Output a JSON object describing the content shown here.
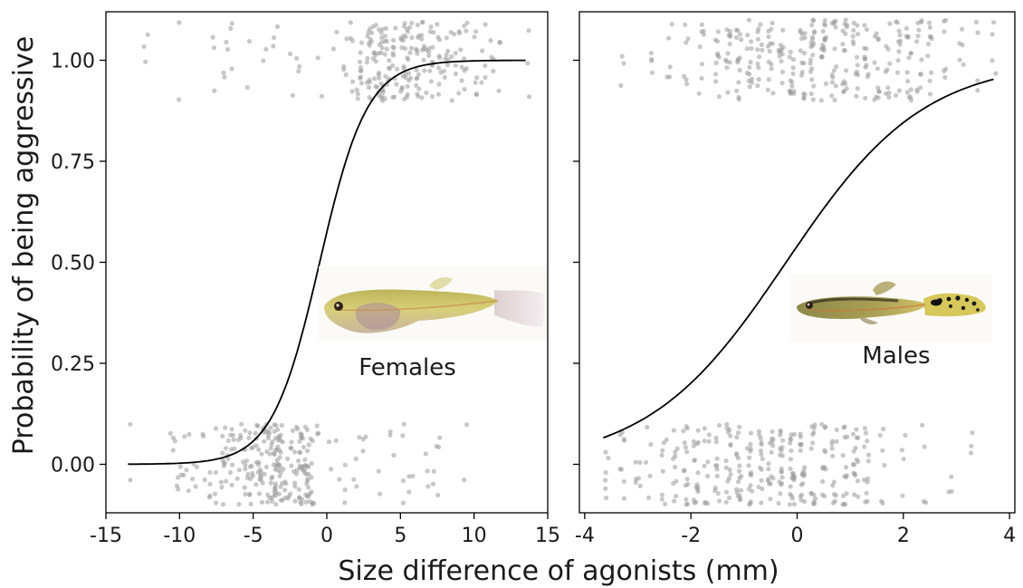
{
  "ylabel": "Probability of being aggressive",
  "xlabel": "Size difference of agonists (mm)",
  "chart_data": [
    {
      "type": "scatter",
      "panel_label": "Females",
      "fit": "logistic",
      "xlim": [
        -15,
        15
      ],
      "ylim": [
        -0.12,
        1.12
      ],
      "x_ticks": [
        -15,
        -10,
        -5,
        0,
        5,
        10,
        15
      ],
      "y_ticks": [
        0.0,
        0.25,
        0.5,
        0.75,
        1.0
      ],
      "x_tick_labels": [
        "-15",
        "-10",
        "-5",
        "0",
        "5",
        "10",
        "15"
      ],
      "y_tick_labels": [
        "0.00",
        "0.25",
        "0.50",
        "0.75",
        "1.00"
      ],
      "curve": {
        "intercept": 0.3,
        "slope": 0.62,
        "x_range": [
          -13.5,
          13.5
        ]
      },
      "points": {
        "zero_x": [
          -13.4,
          -10.5,
          -10.2,
          -9.8,
          -9.5,
          -9,
          -8.4,
          -8,
          -7.5,
          -7.1,
          -6.9,
          -6.6,
          -6.3,
          -5.9,
          -5.6,
          -5.3,
          -5.1,
          -4.7,
          -4.5,
          -4.2,
          -3.9,
          -3.6,
          -3.4,
          -3.3,
          -3.1,
          -2.7,
          -2.3,
          -2,
          -1.8,
          -1.6,
          -1.4,
          -1.2,
          -1,
          -0.6,
          0.3,
          0.7,
          1.2,
          1.9,
          2.1,
          2.6,
          3.5,
          4.4,
          5.1,
          5.7,
          6.8,
          7.3,
          7.6,
          9.5
        ],
        "zero_counts": [
          2,
          3,
          4,
          4,
          3,
          4,
          3,
          4,
          4,
          5,
          8,
          6,
          5,
          7,
          8,
          6,
          9,
          10,
          12,
          9,
          12,
          14,
          16,
          12,
          9,
          7,
          8,
          10,
          9,
          14,
          12,
          8,
          6,
          3,
          2,
          2,
          3,
          2,
          2,
          3,
          2,
          3,
          4,
          3,
          3,
          3,
          3,
          2
        ],
        "one_x": [
          -12.3,
          -10.2,
          -7.8,
          -6.9,
          -6.5,
          -5.4,
          -4.3,
          -3.5,
          -2.4,
          -1.9,
          -0.5,
          0.6,
          1.2,
          1.6,
          2.2,
          2.9,
          3.3,
          3.7,
          4.1,
          4.6,
          5.2,
          5.6,
          6.1,
          6.6,
          7.1,
          7.6,
          8.1,
          8.6,
          9.1,
          9.5,
          10.1,
          10.6,
          11.2,
          11.8,
          13.6
        ],
        "one_counts": [
          3,
          2,
          3,
          4,
          3,
          2,
          2,
          3,
          2,
          3,
          2,
          2,
          4,
          5,
          12,
          16,
          10,
          22,
          14,
          12,
          18,
          15,
          14,
          12,
          14,
          9,
          8,
          7,
          6,
          7,
          6,
          5,
          4,
          3,
          3
        ]
      }
    },
    {
      "type": "scatter",
      "panel_label": "Males",
      "fit": "logistic",
      "xlim": [
        -4.1,
        4.1
      ],
      "ylim": [
        -0.12,
        1.12
      ],
      "x_ticks": [
        -4,
        -2,
        0,
        2,
        4
      ],
      "y_ticks": [
        0.0,
        0.25,
        0.5,
        0.75,
        1.0
      ],
      "x_tick_labels": [
        "-4",
        "-2",
        "0",
        "2",
        "4"
      ],
      "y_tick_labels": [
        "0.00",
        "0.25",
        "0.50",
        "0.75",
        "1.00"
      ],
      "curve": {
        "intercept": 0.16,
        "slope": 0.77,
        "x_range": [
          -3.65,
          3.7
        ]
      },
      "points": {
        "zero_x": [
          -3.6,
          -3.3,
          -3.0,
          -2.8,
          -2.5,
          -2.3,
          -2.1,
          -1.9,
          -1.7,
          -1.5,
          -1.3,
          -1.1,
          -0.9,
          -0.7,
          -0.5,
          -0.3,
          -0.1,
          0.1,
          0.3,
          0.5,
          0.7,
          0.9,
          1.1,
          1.3,
          1.6,
          2.0,
          2.4,
          2.9,
          3.3
        ],
        "zero_counts": [
          6,
          8,
          6,
          5,
          8,
          10,
          14,
          16,
          10,
          12,
          16,
          18,
          16,
          14,
          16,
          18,
          22,
          18,
          14,
          12,
          12,
          14,
          16,
          12,
          6,
          4,
          4,
          3,
          3
        ],
        "one_x": [
          -3.3,
          -2.7,
          -2.4,
          -2.1,
          -1.8,
          -1.5,
          -1.3,
          -1.1,
          -0.9,
          -0.7,
          -0.5,
          -0.3,
          -0.1,
          0.1,
          0.3,
          0.5,
          0.7,
          0.9,
          1.1,
          1.3,
          1.5,
          1.7,
          1.9,
          2.1,
          2.3,
          2.5,
          2.8,
          3.1,
          3.4,
          3.7
        ],
        "one_counts": [
          3,
          4,
          5,
          6,
          8,
          10,
          12,
          14,
          13,
          12,
          14,
          12,
          14,
          16,
          20,
          18,
          14,
          16,
          14,
          12,
          12,
          10,
          12,
          14,
          12,
          10,
          6,
          5,
          4,
          4
        ]
      }
    }
  ]
}
